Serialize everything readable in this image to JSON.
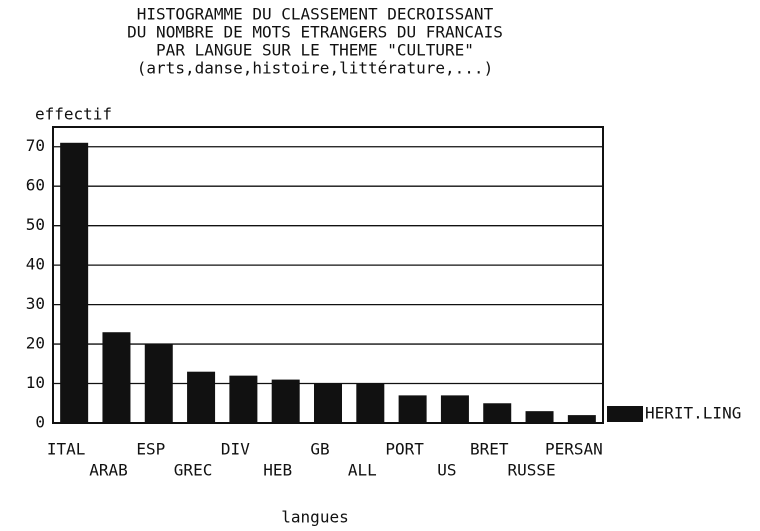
{
  "chart_data": {
    "type": "bar",
    "title": [
      "HISTOGRAMME DU CLASSEMENT DECROISSANT",
      "DU NOMBRE DE MOTS ETRANGERS DU FRANCAIS",
      "PAR LANGUE SUR LE THEME \"CULTURE\"",
      "(arts,danse,histoire,littérature,...)"
    ],
    "y_label": "effectif",
    "x_label": "langues",
    "categories": [
      "ITAL",
      "ARAB",
      "ESP",
      "GREC",
      "DIV",
      "HEB",
      "GB",
      "ALL",
      "PORT",
      "US",
      "BRET",
      "RUSSE",
      "PERSAN"
    ],
    "series": [
      {
        "name": "HERIT.LING",
        "color": "#111111",
        "values": [
          71,
          23,
          20,
          13,
          12,
          11,
          10,
          10,
          7,
          7,
          5,
          3,
          2
        ]
      }
    ],
    "ylim": [
      0,
      75
    ],
    "yticks": [
      0,
      10,
      20,
      30,
      40,
      50,
      60,
      70
    ],
    "grid": true,
    "legend": "right"
  }
}
